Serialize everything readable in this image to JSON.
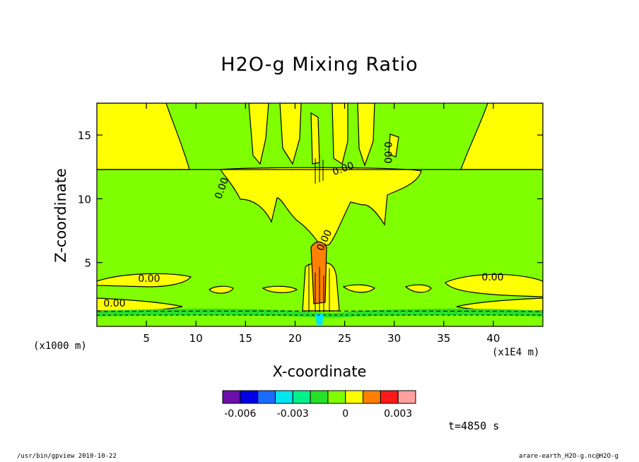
{
  "chart_data": {
    "type": "heatmap",
    "title": "H2O-g Mixing Ratio",
    "xlabel": "X-coordinate",
    "ylabel": "Z-coordinate",
    "x_unit": "(x1000 m)",
    "y_unit": "(x1E4 m)",
    "xlim": [
      0,
      45
    ],
    "ylim": [
      0,
      17.5
    ],
    "x_ticks": [
      5,
      10,
      15,
      20,
      25,
      30,
      35,
      40
    ],
    "y_ticks": [
      5,
      10,
      15
    ],
    "contour_labels": [
      "0.00",
      "0.00",
      "0.00",
      "0.00",
      "0.00",
      "0.00",
      "0.00"
    ],
    "colorbar": {
      "colors": [
        "#6b0fa8",
        "#0000e0",
        "#1a6bff",
        "#00e6f0",
        "#00f08c",
        "#28e028",
        "#7fff00",
        "#ffff00",
        "#ff8000",
        "#ff1a1a",
        "#ffa0a0"
      ],
      "tick_labels": [
        "-0.006",
        "-0.003",
        "0",
        "0.003"
      ]
    },
    "time_label": "t=4850 s",
    "colors": {
      "background_level": "#7fff00",
      "positive_level": "#ffff00",
      "high_level": "#ff8000",
      "low_level": "#28e028"
    }
  },
  "footer": {
    "left": "/usr/bin/gpview   2010-10-22",
    "right": "arare-earth_H2O-g.nc@H2O-g"
  }
}
